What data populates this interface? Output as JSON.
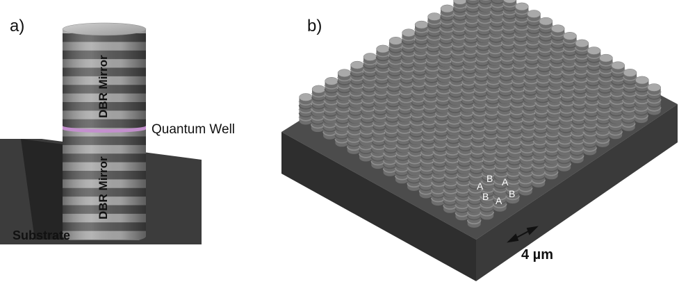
{
  "panel_a": {
    "label": "a)",
    "dbr_mirror_top": "DBR Mirror",
    "dbr_mirror_bottom": "DBR Mirror",
    "quantum_well": "Quantum Well",
    "substrate": "Substrate",
    "colors": {
      "stripe_dark": "#5a5a5a",
      "stripe_light": "#a8a8a8",
      "quantum_well": "#c58fd0",
      "substrate": "#3a3a3a"
    }
  },
  "panel_b": {
    "label": "b)",
    "lattice_sites": [
      "A",
      "B",
      "A",
      "B",
      "A",
      "B"
    ],
    "scale_bar": "4 µm",
    "colors": {
      "pillar_top": "#a9a9a9",
      "pillar_side": "#6e6e6e",
      "base_top": "#505050",
      "base_side": "#2f2f2f"
    }
  }
}
